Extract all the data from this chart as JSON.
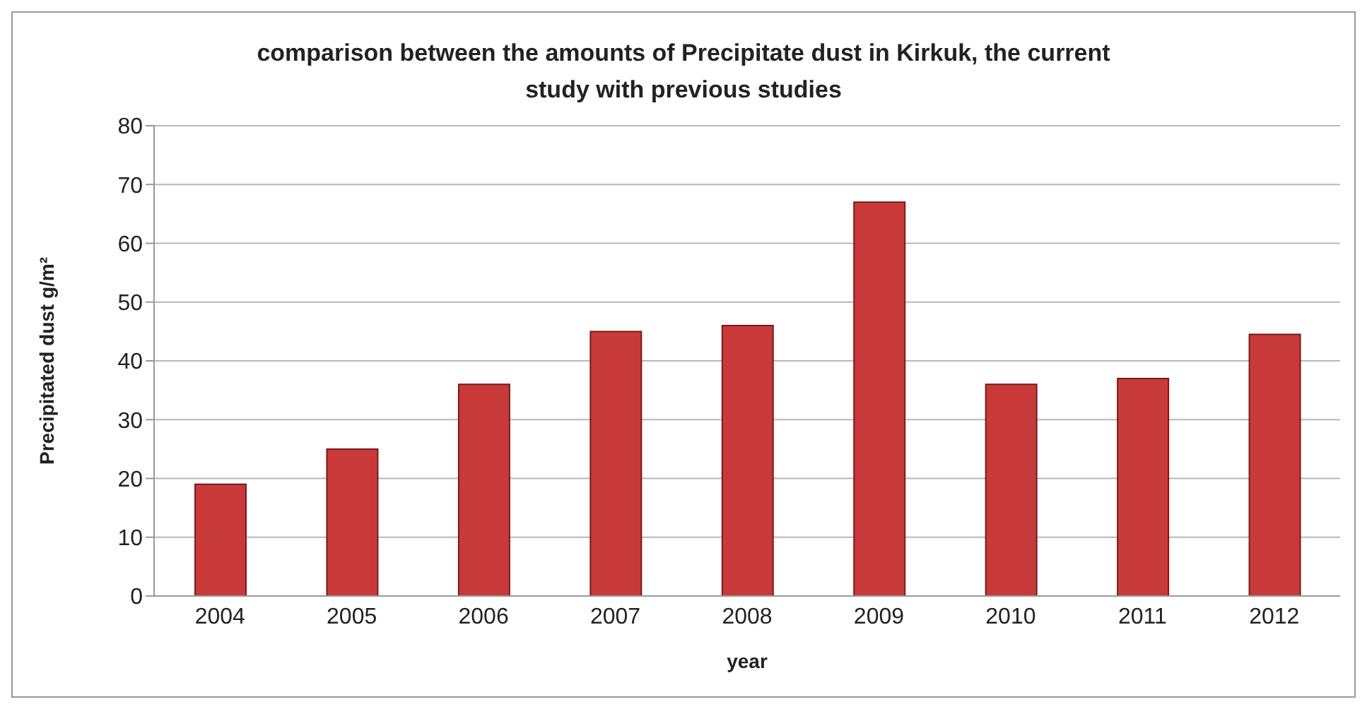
{
  "chart_data": {
    "type": "bar",
    "title": "comparison between the amounts of Precipitate dust in Kirkuk, the current study with previous studies",
    "xlabel": "year",
    "ylabel": "Precipitated dust g/m²",
    "categories": [
      "2004",
      "2005",
      "2006",
      "2007",
      "2008",
      "2009",
      "2010",
      "2011",
      "2012"
    ],
    "values": [
      19,
      25,
      36,
      45,
      46,
      67,
      36,
      37,
      44.5
    ],
    "color": "#c83a3a",
    "ylim": [
      0,
      80
    ],
    "yticks": [
      0,
      10,
      20,
      30,
      40,
      50,
      60,
      70,
      80
    ],
    "grid": "y",
    "legend": false
  }
}
